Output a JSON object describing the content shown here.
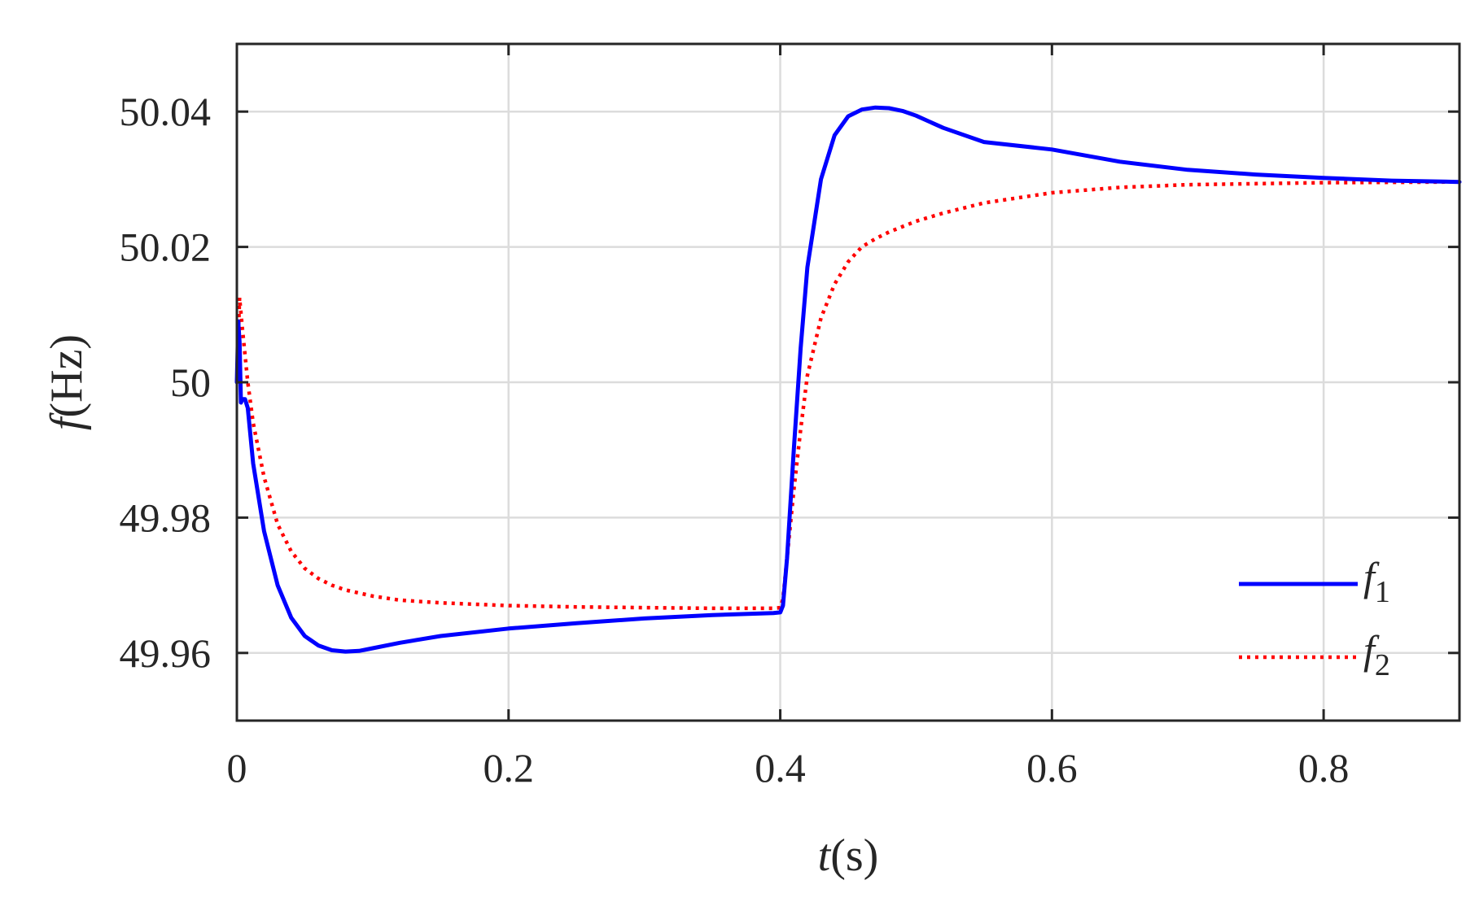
{
  "chart_data": {
    "type": "line",
    "title": "",
    "xlabel": {
      "italic": "t",
      "rest": "(s)"
    },
    "ylabel": {
      "italic": "f",
      "rest": "(Hz)"
    },
    "xlim": [
      0,
      0.9
    ],
    "ylim": [
      49.95,
      50.05
    ],
    "x_ticks": [
      0,
      0.2,
      0.4,
      0.6,
      0.8
    ],
    "x_tick_labels": [
      "0",
      "0.2",
      "0.4",
      "0.6",
      "0.8"
    ],
    "y_ticks": [
      49.96,
      49.98,
      50,
      50.02,
      50.04
    ],
    "y_tick_labels": [
      "49.96",
      "49.98",
      "50",
      "50.02",
      "50.04"
    ],
    "grid": true,
    "legend_position": "bottom-right",
    "series": [
      {
        "name": "f1",
        "legend_main": "f",
        "legend_sub": "1",
        "color": "#0000ff",
        "style": "solid",
        "x": [
          0,
          0.001,
          0.002,
          0.003,
          0.004,
          0.006,
          0.008,
          0.012,
          0.02,
          0.03,
          0.04,
          0.05,
          0.06,
          0.07,
          0.08,
          0.09,
          0.1,
          0.12,
          0.15,
          0.2,
          0.25,
          0.3,
          0.35,
          0.395,
          0.4,
          0.402,
          0.405,
          0.41,
          0.415,
          0.42,
          0.43,
          0.44,
          0.45,
          0.46,
          0.47,
          0.48,
          0.49,
          0.5,
          0.52,
          0.55,
          0.6,
          0.65,
          0.7,
          0.75,
          0.8,
          0.85,
          0.9
        ],
        "y": [
          50.0,
          50.009,
          50.006,
          49.997,
          49.9975,
          49.9975,
          49.9962,
          49.988,
          49.978,
          49.97,
          49.9652,
          49.9625,
          49.9611,
          49.9604,
          49.9602,
          49.9603,
          49.9607,
          49.9615,
          49.9625,
          49.9636,
          49.9644,
          49.9651,
          49.9656,
          49.9659,
          49.966,
          49.967,
          49.974,
          49.99,
          50.005,
          50.017,
          50.03,
          50.0365,
          50.0393,
          50.0403,
          50.0406,
          50.0405,
          50.0401,
          50.0394,
          50.0376,
          50.0355,
          50.0344,
          50.0326,
          50.0314,
          50.0307,
          50.0302,
          50.0298,
          50.0296
        ]
      },
      {
        "name": "f2",
        "legend_main": "f",
        "legend_sub": "2",
        "color": "#ff0000",
        "style": "dotted",
        "x": [
          0,
          0.002,
          0.004,
          0.008,
          0.012,
          0.02,
          0.03,
          0.04,
          0.05,
          0.06,
          0.07,
          0.08,
          0.1,
          0.12,
          0.15,
          0.2,
          0.25,
          0.3,
          0.35,
          0.395,
          0.4,
          0.402,
          0.405,
          0.41,
          0.415,
          0.42,
          0.43,
          0.44,
          0.45,
          0.46,
          0.47,
          0.48,
          0.5,
          0.52,
          0.55,
          0.6,
          0.65,
          0.7,
          0.8,
          0.9
        ],
        "y": [
          50.0,
          50.0125,
          50.008,
          50.0,
          49.994,
          49.986,
          49.979,
          49.975,
          49.9725,
          49.971,
          49.97,
          49.9693,
          49.9684,
          49.9678,
          49.9674,
          49.967,
          49.9668,
          49.9667,
          49.9666,
          49.9666,
          49.9667,
          49.968,
          49.974,
          49.984,
          49.993,
          50.001,
          50.0095,
          50.0145,
          50.0178,
          50.02,
          50.0212,
          50.0222,
          50.0238,
          50.025,
          50.0265,
          50.028,
          50.0288,
          50.0292,
          50.0295,
          50.0296
        ]
      }
    ]
  }
}
